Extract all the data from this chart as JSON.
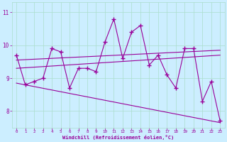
{
  "x": [
    0,
    1,
    2,
    3,
    4,
    5,
    6,
    7,
    8,
    9,
    10,
    11,
    12,
    13,
    14,
    15,
    16,
    17,
    18,
    19,
    20,
    21,
    22,
    23
  ],
  "y_main": [
    9.7,
    8.8,
    8.9,
    9.0,
    9.9,
    9.8,
    8.7,
    9.3,
    9.3,
    9.2,
    10.1,
    10.8,
    9.6,
    10.4,
    10.6,
    9.4,
    9.7,
    9.1,
    8.7,
    9.9,
    9.9,
    8.3,
    8.9,
    7.7
  ],
  "line_color": "#990099",
  "bg_color": "#cceeff",
  "xlabel": "Windchill (Refroidissement éolien,°C)",
  "xlim": [
    -0.5,
    23.5
  ],
  "ylim": [
    7.5,
    11.3
  ],
  "yticks": [
    8,
    9,
    10,
    11
  ],
  "xticks": [
    0,
    1,
    2,
    3,
    4,
    5,
    6,
    7,
    8,
    9,
    10,
    11,
    12,
    13,
    14,
    15,
    16,
    17,
    18,
    19,
    20,
    21,
    22,
    23
  ],
  "grid_color": "#aaddcc",
  "upper_band_start": 9.55,
  "upper_band_end": 9.85,
  "mid_band_start": 9.3,
  "mid_band_end": 9.7,
  "lower_band_start": 8.85,
  "lower_band_end": 7.65
}
